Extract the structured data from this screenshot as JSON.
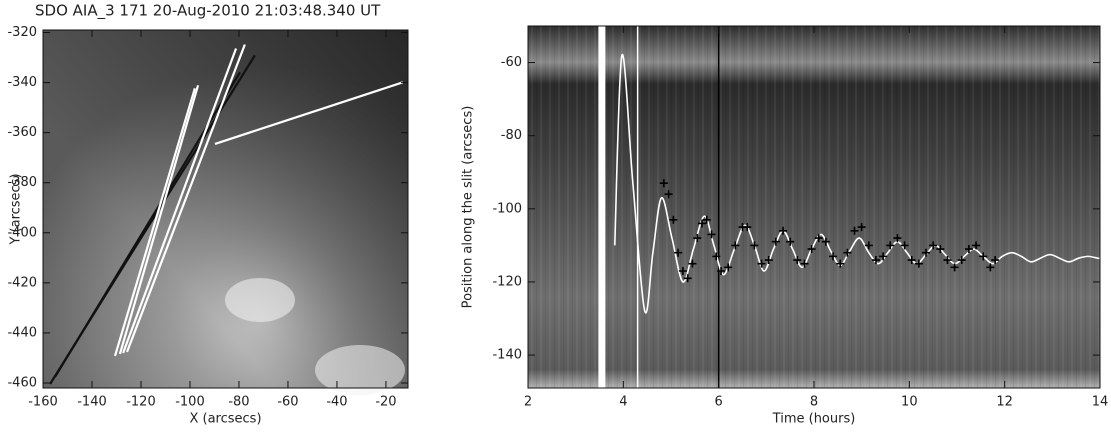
{
  "chart_data": [
    {
      "type": "image",
      "title": "SDO AIA_3 171 20-Aug-2010 21:03:48.340 UT",
      "xlabel": "X (arcsecs)",
      "ylabel": "Y (arcsecs)",
      "xlim": [
        -160,
        -11
      ],
      "ylim": [
        -462,
        -319
      ],
      "xticks": [
        -160,
        -140,
        -120,
        -100,
        -80,
        -60,
        -40,
        -20
      ],
      "yticks": [
        -320,
        -340,
        -360,
        -380,
        -400,
        -420,
        -440,
        -460
      ],
      "slits": [
        {
          "color": "#111111",
          "x": [
            -157.1,
            -73.5
          ],
          "y": [
            -460.4,
            -329.1
          ]
        },
        {
          "color": "#111111",
          "x": [
            -155.1,
            -79.6
          ],
          "y": [
            -457.6,
            -335.9
          ]
        },
        {
          "color": "#ffffff",
          "x": [
            -130.6,
            -98
          ],
          "y": [
            -449.2,
            -342.3
          ]
        },
        {
          "color": "#ffffff",
          "x": [
            -128.6,
            -96.7
          ],
          "y": [
            -448.4,
            -341.1
          ]
        },
        {
          "color": "#ffffff",
          "x": [
            -127.3,
            -81.2
          ],
          "y": [
            -448,
            -326.4
          ]
        },
        {
          "color": "#ffffff",
          "x": [
            -125.7,
            -77.6
          ],
          "y": [
            -447.6,
            -324.8
          ]
        },
        {
          "color": "#ffffff",
          "x": [
            -89.8,
            -13.1
          ],
          "y": [
            -364.5,
            -339.9
          ]
        }
      ]
    },
    {
      "type": "line",
      "xlabel": "Time (hours)",
      "ylabel": "Position along the slit (arcsecs)",
      "xlim": [
        2,
        14
      ],
      "ylim": [
        -149,
        -50
      ],
      "xticks": [
        2,
        4,
        6,
        8,
        10,
        12,
        14
      ],
      "yticks": [
        -60,
        -80,
        -100,
        -120,
        -140
      ],
      "vertical_lines": [
        {
          "x": 3.55,
          "color": "#ffffff",
          "style": "thick"
        },
        {
          "x": 4.3,
          "color": "#ffffff",
          "style": "thin"
        },
        {
          "x": 6,
          "color": "#000000",
          "style": "thin"
        }
      ],
      "series": [
        {
          "type": "line",
          "color": "#ffffff",
          "x": [
            3.82,
            3.97,
            4.2,
            4.45,
            4.62,
            4.8,
            5.02,
            5.25,
            5.47,
            5.7,
            5.9,
            6.1,
            6.33,
            6.55,
            6.75,
            6.95,
            7.15,
            7.35,
            7.55,
            7.75,
            7.95,
            8.15,
            8.35,
            8.55,
            8.75,
            8.95,
            9.15,
            9.35,
            9.55,
            9.75,
            9.95,
            10.15,
            10.35,
            10.55,
            10.75,
            10.95,
            11.15,
            11.35,
            11.55,
            11.75,
            11.95,
            12.15,
            12.35,
            12.55,
            12.75,
            12.95,
            13.15,
            13.35,
            13.55,
            13.75,
            13.95,
            14
          ],
          "values": [
            -110,
            -58,
            -93,
            -128,
            -112,
            -97,
            -108,
            -120,
            -111,
            -102,
            -110,
            -118,
            -111,
            -104.5,
            -110,
            -117,
            -111,
            -106,
            -111,
            -116,
            -111,
            -107,
            -111.5,
            -115.5,
            -111.5,
            -108,
            -112,
            -115,
            -112,
            -109,
            -112,
            -115,
            -112.5,
            -110,
            -112.5,
            -115,
            -113,
            -111,
            -113,
            -115,
            -113,
            -112,
            -113,
            -114.5,
            -113.5,
            -112.5,
            -113.5,
            -114.5,
            -113.5,
            -113,
            -113.5,
            -113.5
          ]
        },
        {
          "type": "scatter",
          "color": "#000000",
          "marker": "+",
          "x": [
            4.85,
            4.95,
            5.05,
            5.15,
            5.25,
            5.35,
            5.45,
            5.55,
            5.65,
            5.75,
            5.85,
            5.95,
            6.05,
            6.2,
            6.35,
            6.5,
            6.6,
            6.75,
            6.9,
            7.05,
            7.2,
            7.35,
            7.5,
            7.65,
            7.8,
            7.95,
            8.1,
            8.25,
            8.4,
            8.55,
            8.7,
            8.85,
            9.0,
            9.15,
            9.3,
            9.45,
            9.6,
            9.75,
            9.9,
            10.05,
            10.2,
            10.35,
            10.5,
            10.65,
            10.8,
            10.95,
            11.1,
            11.25,
            11.4,
            11.55,
            11.7,
            11.8
          ],
          "values": [
            -93,
            -96,
            -103,
            -112,
            -117,
            -119,
            -115,
            -108,
            -104,
            -103,
            -107,
            -113,
            -117,
            -116,
            -110,
            -105,
            -105,
            -110,
            -115,
            -114,
            -109,
            -106,
            -109,
            -114,
            -115,
            -111,
            -108,
            -109,
            -113,
            -115,
            -112,
            -106,
            -105,
            -110,
            -114,
            -113,
            -110,
            -108,
            -110,
            -114,
            -115,
            -112,
            -110,
            -111,
            -114,
            -116,
            -114,
            -111,
            -110,
            -113,
            -116,
            -114
          ]
        }
      ]
    }
  ]
}
